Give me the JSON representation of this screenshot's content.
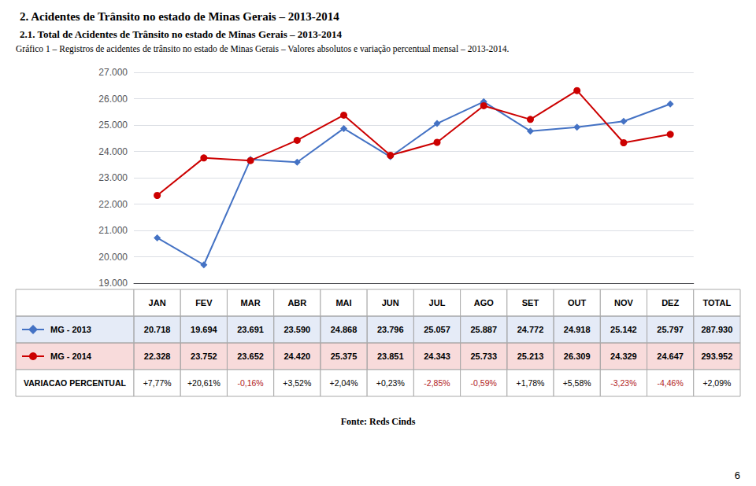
{
  "chart_data": {
    "type": "line",
    "title": "2. Acidentes de Trânsito no estado de Minas Gerais – 2013-2014",
    "subtitle": "2.1. Total de Acidentes de Trânsito no estado de Minas Gerais – 2013-2014",
    "annotations": {
      "caption": "Gráfico 1 – Registros de acidentes de trânsito no estado de Minas Gerais – Valores absolutos e variação percentual mensal – 2013-2014.",
      "source": "Fonte: Reds Cinds",
      "page": "6"
    },
    "categories": [
      "JAN",
      "FEV",
      "MAR",
      "ABR",
      "MAI",
      "JUN",
      "JUL",
      "AGO",
      "SET",
      "OUT",
      "NOV",
      "DEZ"
    ],
    "total_header": "TOTAL",
    "series": [
      {
        "name": "MG - 2013",
        "color": "#4472C4",
        "marker": "diamond",
        "values": [
          20718,
          19694,
          23691,
          23590,
          24868,
          23796,
          25057,
          25887,
          24772,
          24918,
          25142,
          25797
        ],
        "value_labels": [
          "20.718",
          "19.694",
          "23.691",
          "23.590",
          "24.868",
          "23.796",
          "25.057",
          "25.887",
          "24.772",
          "24.918",
          "25.142",
          "25.797"
        ],
        "total": 287930,
        "total_label": "287.930"
      },
      {
        "name": "MG - 2014",
        "color": "#CC0000",
        "marker": "circle",
        "values": [
          22328,
          23752,
          23652,
          24420,
          25375,
          23851,
          24343,
          25733,
          25213,
          26309,
          24329,
          24647
        ],
        "value_labels": [
          "22.328",
          "23.752",
          "23.652",
          "24.420",
          "25.375",
          "23.851",
          "24.343",
          "25.733",
          "25.213",
          "26.309",
          "24.329",
          "24.647"
        ],
        "total": 293952,
        "total_label": "293.952"
      }
    ],
    "variation": {
      "name": "VARIACAO PERCENTUAL",
      "values": [
        7.77,
        20.61,
        -0.16,
        3.52,
        2.04,
        0.23,
        -2.85,
        -0.59,
        1.78,
        5.58,
        -3.23,
        -4.46
      ],
      "value_labels": [
        "+7,77%",
        "+20,61%",
        "-0,16%",
        "+3,52%",
        "+2,04%",
        "+0,23%",
        "-2,85%",
        "-0,59%",
        "+1,78%",
        "+5,58%",
        "-3,23%",
        "-4,46%"
      ],
      "total": 2.09,
      "total_label": "+2,09%"
    },
    "ylim": [
      19000,
      27000
    ],
    "yticks": [
      {
        "value": 19000,
        "label": "19.000"
      },
      {
        "value": 20000,
        "label": "20.000"
      },
      {
        "value": 21000,
        "label": "21.000"
      },
      {
        "value": 22000,
        "label": "22.000"
      },
      {
        "value": 23000,
        "label": "23.000"
      },
      {
        "value": 24000,
        "label": "24.000"
      },
      {
        "value": 25000,
        "label": "25.000"
      },
      {
        "value": 26000,
        "label": "26.000"
      },
      {
        "value": 27000,
        "label": "27.000"
      }
    ],
    "grid": true,
    "tick_labels": "y"
  }
}
